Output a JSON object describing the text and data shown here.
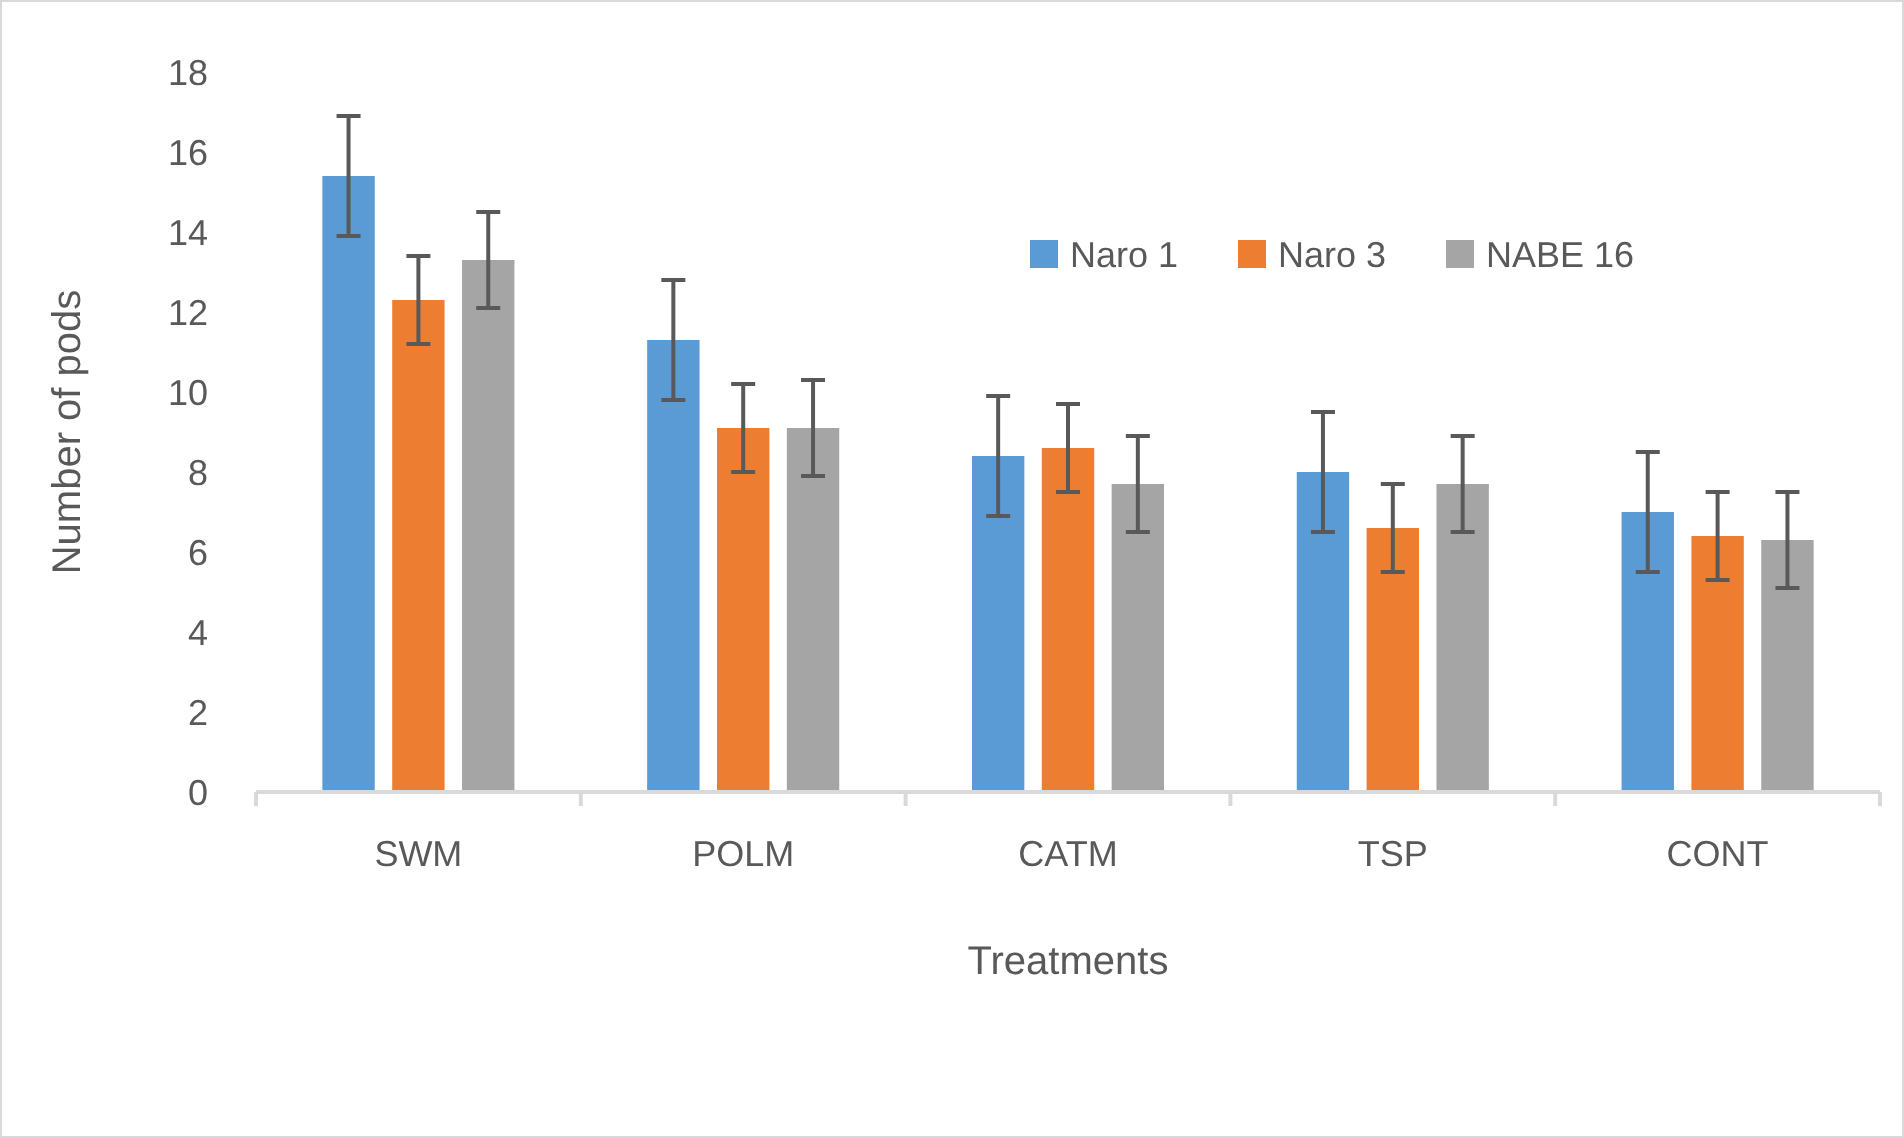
{
  "chart_data": {
    "type": "bar",
    "xlabel": "Treatments",
    "ylabel": "Number of pods",
    "categories": [
      "SWM",
      "POLM",
      "CATM",
      "TSP",
      "CONT"
    ],
    "series": [
      {
        "name": "Naro 1",
        "color": "#5b9bd5",
        "values": [
          15.4,
          11.3,
          8.4,
          8.0,
          7.0
        ],
        "errors": [
          1.5,
          1.5,
          1.5,
          1.5,
          1.5
        ]
      },
      {
        "name": "Naro 3",
        "color": "#ed7d31",
        "values": [
          12.3,
          9.1,
          8.6,
          6.6,
          6.4
        ],
        "errors": [
          1.1,
          1.1,
          1.1,
          1.1,
          1.1
        ]
      },
      {
        "name": "NABE 16",
        "color": "#a5a5a5",
        "values": [
          13.3,
          9.1,
          7.7,
          7.7,
          6.3
        ],
        "errors": [
          1.2,
          1.2,
          1.2,
          1.2,
          1.2
        ]
      }
    ],
    "ylim": [
      0,
      18
    ],
    "yticks": [
      0,
      2,
      4,
      6,
      8,
      10,
      12,
      14,
      16,
      18
    ],
    "grid": false,
    "legend": "top right"
  }
}
